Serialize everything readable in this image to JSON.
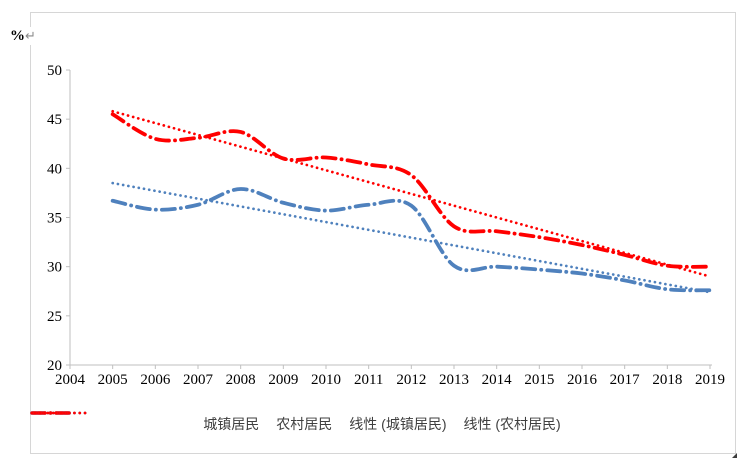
{
  "chart": {
    "unit_label": "%",
    "paragraph_mark": "↵"
  },
  "chart_data": {
    "type": "line",
    "title": "",
    "xlabel": "",
    "ylabel": "%",
    "ylim": [
      20,
      50
    ],
    "xlim": [
      2004,
      2019
    ],
    "y_ticks": [
      "50",
      "45",
      "40",
      "35",
      "30",
      "25",
      "20"
    ],
    "y_tick_values": [
      50,
      45,
      40,
      35,
      30,
      25,
      20
    ],
    "categories": [
      "2004",
      "2005",
      "2006",
      "2007",
      "2008",
      "2009",
      "2010",
      "2011",
      "2012",
      "2013",
      "2014",
      "2015",
      "2016",
      "2017",
      "2018",
      "2019"
    ],
    "grid": false,
    "legend_position": "bottom",
    "series": [
      {
        "name": "城镇居民",
        "color": "#4F81BD",
        "style": "dash-dot",
        "smooth": true,
        "years": [
          2005,
          2006,
          2007,
          2008,
          2009,
          2010,
          2011,
          2012,
          2013,
          2014,
          2015,
          2016,
          2017,
          2018,
          2019
        ],
        "values": [
          36.7,
          35.8,
          36.3,
          37.9,
          36.5,
          35.7,
          36.3,
          36.2,
          30.1,
          30.0,
          29.7,
          29.3,
          28.6,
          27.7,
          27.6
        ]
      },
      {
        "name": "农村居民",
        "color": "#FF0000",
        "style": "dash-dot",
        "smooth": true,
        "years": [
          2005,
          2006,
          2007,
          2008,
          2009,
          2010,
          2011,
          2012,
          2013,
          2014,
          2015,
          2016,
          2017,
          2018,
          2019
        ],
        "values": [
          45.5,
          43.0,
          43.1,
          43.7,
          41.0,
          41.1,
          40.4,
          39.3,
          34.1,
          33.6,
          33.0,
          32.2,
          31.2,
          30.1,
          30.0
        ]
      },
      {
        "name": "线性 (城镇居民)",
        "color": "#4F81BD",
        "style": "dotted",
        "trendline": true,
        "years": [
          2005,
          2019
        ],
        "values": [
          38.5,
          27.4
        ]
      },
      {
        "name": "线性 (农村居民)",
        "color": "#FF0000",
        "style": "dotted",
        "trendline": true,
        "years": [
          2005,
          2019
        ],
        "values": [
          45.8,
          29.0
        ]
      }
    ]
  }
}
